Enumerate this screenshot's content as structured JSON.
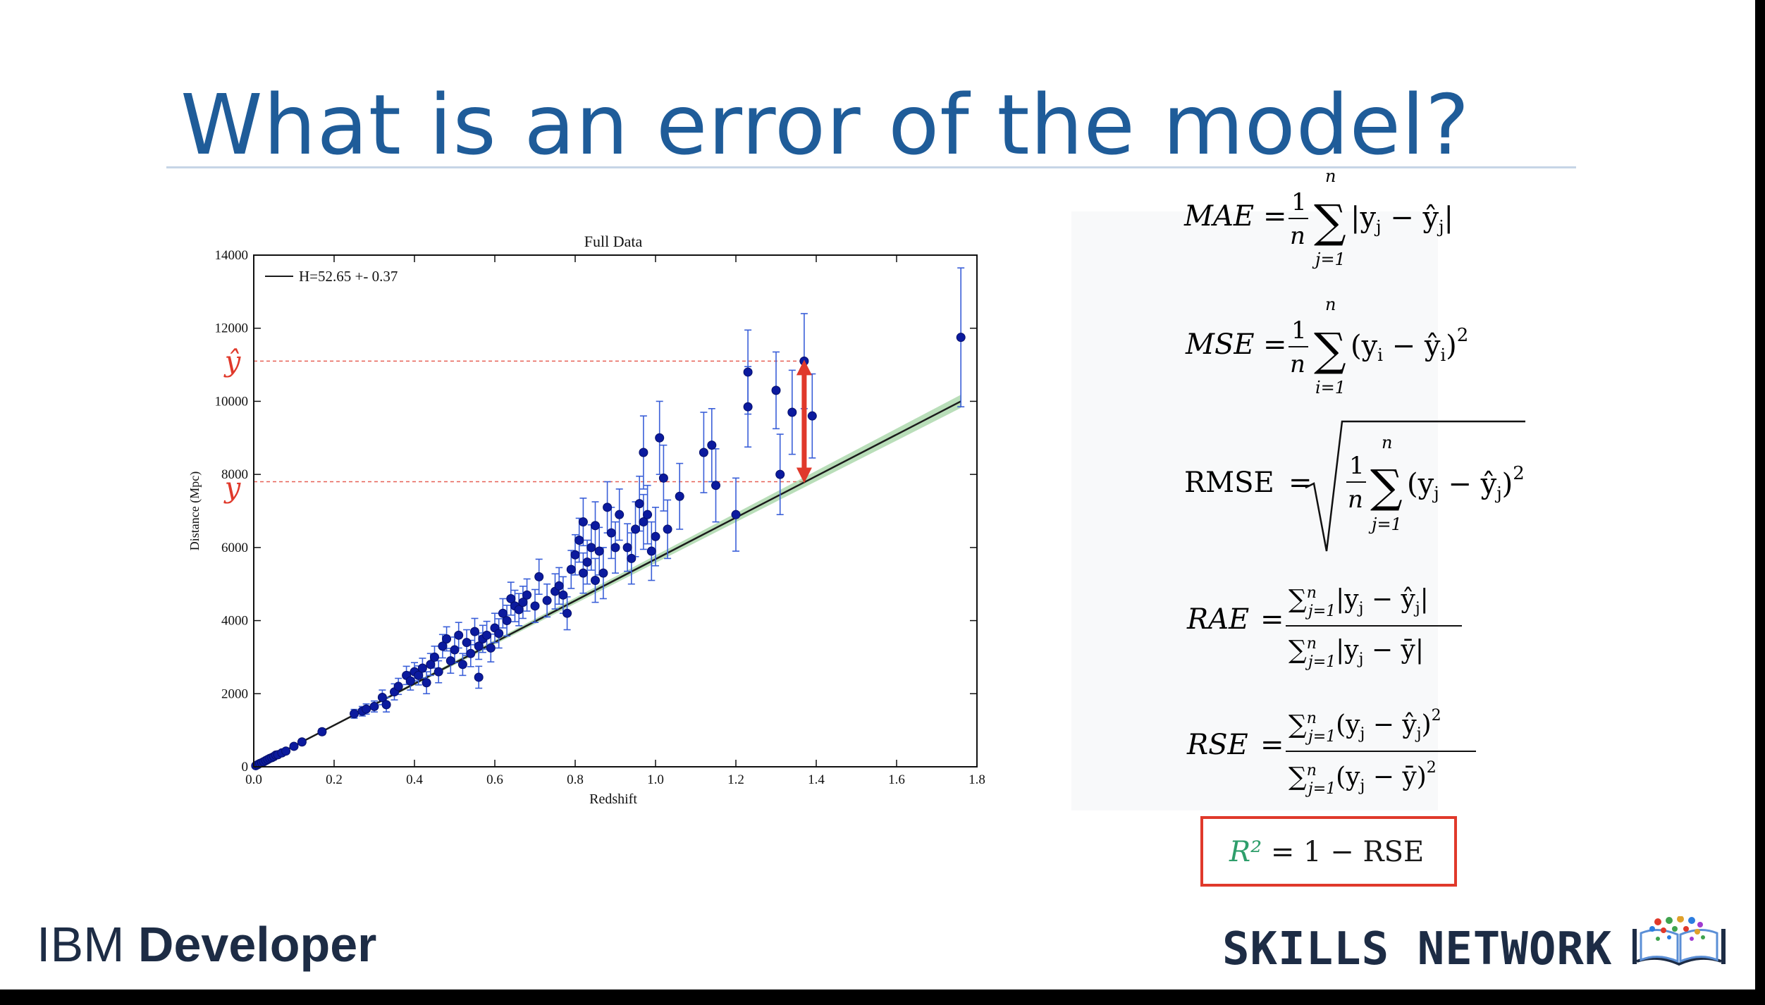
{
  "slide": {
    "title": "What is an error of the model?"
  },
  "footer": {
    "brand_left_regular": "IBM",
    "brand_left_bold": "Developer",
    "brand_right": "SKILLS NETWORK"
  },
  "formulas": {
    "mae": "MAE",
    "mse": "MSE",
    "rmse": "RMSE",
    "rae": "RAE",
    "rse": "RSE",
    "r2": "R² = 1 − RSE"
  },
  "colors": {
    "title": "#1f5c99",
    "points": "#0b1a9e",
    "errorbars": "#3a5fd8",
    "fit": "#1b1b1b",
    "fit_band": "#7fc27f",
    "annotation": "#e0392b",
    "r2_green": "#2e9e6b"
  },
  "chart_data": {
    "type": "scatter",
    "title": "Full Data",
    "xlabel": "Redshift",
    "ylabel": "Distance (Mpc)",
    "xlim": [
      0.0,
      1.8
    ],
    "ylim": [
      0,
      14000
    ],
    "xticks": [
      0.0,
      0.2,
      0.4,
      0.6,
      0.8,
      1.0,
      1.2,
      1.4,
      1.6,
      1.8
    ],
    "xtick_labels": [
      "0.0",
      "0.2",
      "0.4",
      "0.6",
      "0.8",
      "1.0",
      "1.2",
      "1.4",
      "1.6",
      "1.8"
    ],
    "yticks": [
      0,
      2000,
      4000,
      6000,
      8000,
      10000,
      12000,
      14000
    ],
    "ytick_labels": [
      "0",
      "2000",
      "4000",
      "6000",
      "8000",
      "10000",
      "12000",
      "14000"
    ],
    "legend": {
      "label": "H=52.65 +- 0.37",
      "position": "top-left"
    },
    "fit_line": {
      "x": [
        0.0,
        1.76
      ],
      "y": [
        0,
        10000
      ]
    },
    "annotations": {
      "y_hat_label": "ŷ",
      "y_label": "y",
      "y_hat_value": 11100,
      "y_value": 7800,
      "arrow_x": 1.37
    },
    "points": [
      {
        "x": 0.005,
        "y": 30,
        "e": 20
      },
      {
        "x": 0.01,
        "y": 60,
        "e": 25
      },
      {
        "x": 0.015,
        "y": 90,
        "e": 30
      },
      {
        "x": 0.02,
        "y": 110,
        "e": 30
      },
      {
        "x": 0.025,
        "y": 140,
        "e": 35
      },
      {
        "x": 0.03,
        "y": 170,
        "e": 35
      },
      {
        "x": 0.035,
        "y": 200,
        "e": 40
      },
      {
        "x": 0.04,
        "y": 230,
        "e": 40
      },
      {
        "x": 0.045,
        "y": 250,
        "e": 40
      },
      {
        "x": 0.05,
        "y": 280,
        "e": 45
      },
      {
        "x": 0.055,
        "y": 320,
        "e": 45
      },
      {
        "x": 0.06,
        "y": 330,
        "e": 50
      },
      {
        "x": 0.07,
        "y": 380,
        "e": 50
      },
      {
        "x": 0.08,
        "y": 430,
        "e": 60
      },
      {
        "x": 0.1,
        "y": 560,
        "e": 60
      },
      {
        "x": 0.12,
        "y": 680,
        "e": 70
      },
      {
        "x": 0.17,
        "y": 960,
        "e": 80
      },
      {
        "x": 0.25,
        "y": 1450,
        "e": 120
      },
      {
        "x": 0.27,
        "y": 1520,
        "e": 130
      },
      {
        "x": 0.28,
        "y": 1580,
        "e": 140
      },
      {
        "x": 0.3,
        "y": 1650,
        "e": 150
      },
      {
        "x": 0.32,
        "y": 1900,
        "e": 200
      },
      {
        "x": 0.33,
        "y": 1700,
        "e": 200
      },
      {
        "x": 0.35,
        "y": 2050,
        "e": 220
      },
      {
        "x": 0.36,
        "y": 2200,
        "e": 220
      },
      {
        "x": 0.38,
        "y": 2500,
        "e": 250
      },
      {
        "x": 0.39,
        "y": 2350,
        "e": 250
      },
      {
        "x": 0.4,
        "y": 2600,
        "e": 250
      },
      {
        "x": 0.41,
        "y": 2500,
        "e": 260
      },
      {
        "x": 0.42,
        "y": 2700,
        "e": 270
      },
      {
        "x": 0.43,
        "y": 2300,
        "e": 300
      },
      {
        "x": 0.44,
        "y": 2800,
        "e": 300
      },
      {
        "x": 0.45,
        "y": 3000,
        "e": 300
      },
      {
        "x": 0.46,
        "y": 2600,
        "e": 300
      },
      {
        "x": 0.47,
        "y": 3300,
        "e": 320
      },
      {
        "x": 0.48,
        "y": 3500,
        "e": 330
      },
      {
        "x": 0.49,
        "y": 2900,
        "e": 340
      },
      {
        "x": 0.5,
        "y": 3200,
        "e": 350
      },
      {
        "x": 0.51,
        "y": 3600,
        "e": 350
      },
      {
        "x": 0.52,
        "y": 2800,
        "e": 300
      },
      {
        "x": 0.53,
        "y": 3400,
        "e": 350
      },
      {
        "x": 0.54,
        "y": 3100,
        "e": 360
      },
      {
        "x": 0.55,
        "y": 3700,
        "e": 360
      },
      {
        "x": 0.56,
        "y": 3300,
        "e": 360
      },
      {
        "x": 0.56,
        "y": 2450,
        "e": 300
      },
      {
        "x": 0.57,
        "y": 3500,
        "e": 370
      },
      {
        "x": 0.58,
        "y": 3600,
        "e": 380
      },
      {
        "x": 0.59,
        "y": 3250,
        "e": 380
      },
      {
        "x": 0.6,
        "y": 3800,
        "e": 400
      },
      {
        "x": 0.61,
        "y": 3650,
        "e": 400
      },
      {
        "x": 0.62,
        "y": 4200,
        "e": 400
      },
      {
        "x": 0.63,
        "y": 4000,
        "e": 420
      },
      {
        "x": 0.64,
        "y": 4600,
        "e": 450
      },
      {
        "x": 0.65,
        "y": 4400,
        "e": 430
      },
      {
        "x": 0.66,
        "y": 4300,
        "e": 440
      },
      {
        "x": 0.67,
        "y": 4500,
        "e": 440
      },
      {
        "x": 0.68,
        "y": 4700,
        "e": 440
      },
      {
        "x": 0.7,
        "y": 4400,
        "e": 450
      },
      {
        "x": 0.71,
        "y": 5200,
        "e": 480
      },
      {
        "x": 0.73,
        "y": 4550,
        "e": 450
      },
      {
        "x": 0.75,
        "y": 4800,
        "e": 480
      },
      {
        "x": 0.76,
        "y": 4950,
        "e": 500
      },
      {
        "x": 0.77,
        "y": 4700,
        "e": 500
      },
      {
        "x": 0.78,
        "y": 4200,
        "e": 450
      },
      {
        "x": 0.79,
        "y": 5400,
        "e": 520
      },
      {
        "x": 0.8,
        "y": 5800,
        "e": 550
      },
      {
        "x": 0.81,
        "y": 6200,
        "e": 600
      },
      {
        "x": 0.82,
        "y": 6700,
        "e": 650
      },
      {
        "x": 0.82,
        "y": 5300,
        "e": 550
      },
      {
        "x": 0.83,
        "y": 5600,
        "e": 600
      },
      {
        "x": 0.84,
        "y": 6000,
        "e": 620
      },
      {
        "x": 0.85,
        "y": 6600,
        "e": 650
      },
      {
        "x": 0.85,
        "y": 5100,
        "e": 600
      },
      {
        "x": 0.86,
        "y": 5900,
        "e": 650
      },
      {
        "x": 0.87,
        "y": 5300,
        "e": 700
      },
      {
        "x": 0.88,
        "y": 7100,
        "e": 700
      },
      {
        "x": 0.89,
        "y": 6400,
        "e": 700
      },
      {
        "x": 0.9,
        "y": 6000,
        "e": 700
      },
      {
        "x": 0.91,
        "y": 6900,
        "e": 700
      },
      {
        "x": 0.93,
        "y": 6000,
        "e": 650
      },
      {
        "x": 0.94,
        "y": 5700,
        "e": 700
      },
      {
        "x": 0.95,
        "y": 6500,
        "e": 750
      },
      {
        "x": 0.96,
        "y": 7200,
        "e": 750
      },
      {
        "x": 0.97,
        "y": 6700,
        "e": 750
      },
      {
        "x": 0.97,
        "y": 8600,
        "e": 1000
      },
      {
        "x": 0.98,
        "y": 6900,
        "e": 800
      },
      {
        "x": 0.99,
        "y": 5900,
        "e": 800
      },
      {
        "x": 1.0,
        "y": 6300,
        "e": 800
      },
      {
        "x": 1.01,
        "y": 9000,
        "e": 1000
      },
      {
        "x": 1.02,
        "y": 7900,
        "e": 900
      },
      {
        "x": 1.03,
        "y": 6500,
        "e": 800
      },
      {
        "x": 1.06,
        "y": 7400,
        "e": 900
      },
      {
        "x": 1.12,
        "y": 8600,
        "e": 1100
      },
      {
        "x": 1.14,
        "y": 8800,
        "e": 1000
      },
      {
        "x": 1.15,
        "y": 7700,
        "e": 1000
      },
      {
        "x": 1.2,
        "y": 6900,
        "e": 1000
      },
      {
        "x": 1.23,
        "y": 10800,
        "e": 1150
      },
      {
        "x": 1.23,
        "y": 9850,
        "e": 1100
      },
      {
        "x": 1.3,
        "y": 10300,
        "e": 1050
      },
      {
        "x": 1.31,
        "y": 8000,
        "e": 1100
      },
      {
        "x": 1.34,
        "y": 9700,
        "e": 1150
      },
      {
        "x": 1.37,
        "y": 11100,
        "e": 1300
      },
      {
        "x": 1.39,
        "y": 9600,
        "e": 1150
      },
      {
        "x": 1.76,
        "y": 11750,
        "e": 1900
      }
    ]
  }
}
